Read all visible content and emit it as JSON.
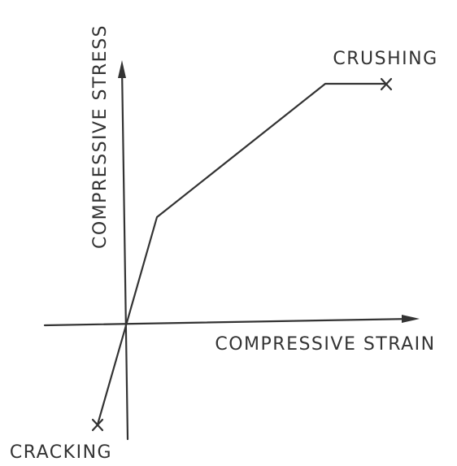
{
  "axes": {
    "y_label": "COMPRESSIVE STRESS",
    "x_label": "COMPRESSIVE STRAIN"
  },
  "points": [
    {
      "label": "CRUSHING"
    },
    {
      "label": "CRACKING"
    }
  ]
}
